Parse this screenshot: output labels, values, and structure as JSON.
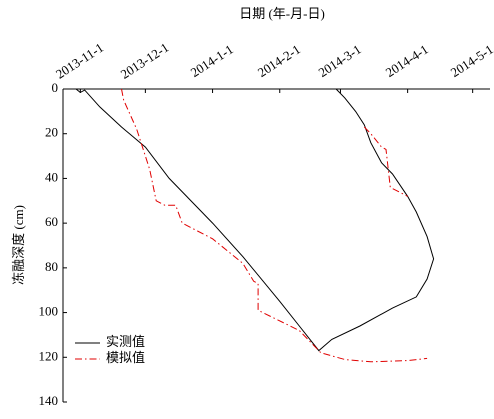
{
  "chart_data": {
    "type": "line",
    "x_label": "日期 (年-月-日)",
    "y_label": "冻融深度 (cm)",
    "xlim": [
      "2013-10-24",
      "2014-5-9"
    ],
    "xticks": [
      "2013-11-1",
      "2013-12-1",
      "2014-1-1",
      "2014-2-1",
      "2014-3-1",
      "2014-4-1",
      "2014-5-1"
    ],
    "ylim": [
      0,
      140
    ],
    "yticks": [
      0,
      20,
      40,
      60,
      80,
      100,
      120,
      140
    ],
    "y_inverted": true,
    "legend": "lower left",
    "series": [
      {
        "name": "实测值",
        "color": "#000000",
        "dash": "solid",
        "x": [
          "2013-10-30",
          "2013-11-1",
          "2013-11-3",
          "2013-11-10",
          "2013-11-20",
          "2013-12-1",
          "2013-12-12",
          "2014-1-1",
          "2014-1-15",
          "2014-2-1",
          "2014-2-10",
          "2014-2-19",
          "2014-2-25",
          "2014-3-10",
          "2014-3-25",
          "2014-4-5",
          "2014-4-10",
          "2014-4-13",
          "2014-4-10",
          "2014-4-5",
          "2014-4-1",
          "2014-3-25",
          "2014-3-20",
          "2014-3-15",
          "2014-3-12",
          "2014-3-8",
          "2014-3-3",
          "2014-2-27"
        ],
        "values": [
          0,
          1.5,
          0.5,
          8,
          17,
          26,
          40,
          60,
          75,
          95,
          106,
          117,
          112,
          106,
          98,
          93,
          85,
          76,
          66,
          55,
          48,
          38,
          33,
          24,
          16,
          10,
          4,
          0
        ]
      },
      {
        "name": "模拟值",
        "color": "#e00000",
        "dash": "dashdot",
        "x": [
          "2013-11-20",
          "2013-11-21",
          "2013-11-27",
          "2013-12-3",
          "2013-12-6",
          "2013-12-10",
          "2013-12-15",
          "2013-12-18",
          "2014-1-1",
          "2014-1-15",
          "2014-1-20",
          "2014-1-22",
          "2014-1-22",
          "2014-2-10",
          "2014-2-20",
          "2014-3-3",
          "2014-3-15",
          "2014-4-1",
          "2014-4-10",
          "2014-4-10",
          "2014-3-12",
          "2014-3-15",
          "2014-3-20",
          "2014-3-22",
          "2014-3-24",
          "2014-4-1"
        ],
        "values": [
          0,
          5,
          18,
          36,
          50,
          52,
          52,
          60,
          67,
          78,
          86,
          87,
          99,
          108,
          118,
          121,
          122,
          121.5,
          120.5,
          null,
          17,
          20,
          26,
          27,
          44,
          48
        ]
      }
    ]
  }
}
